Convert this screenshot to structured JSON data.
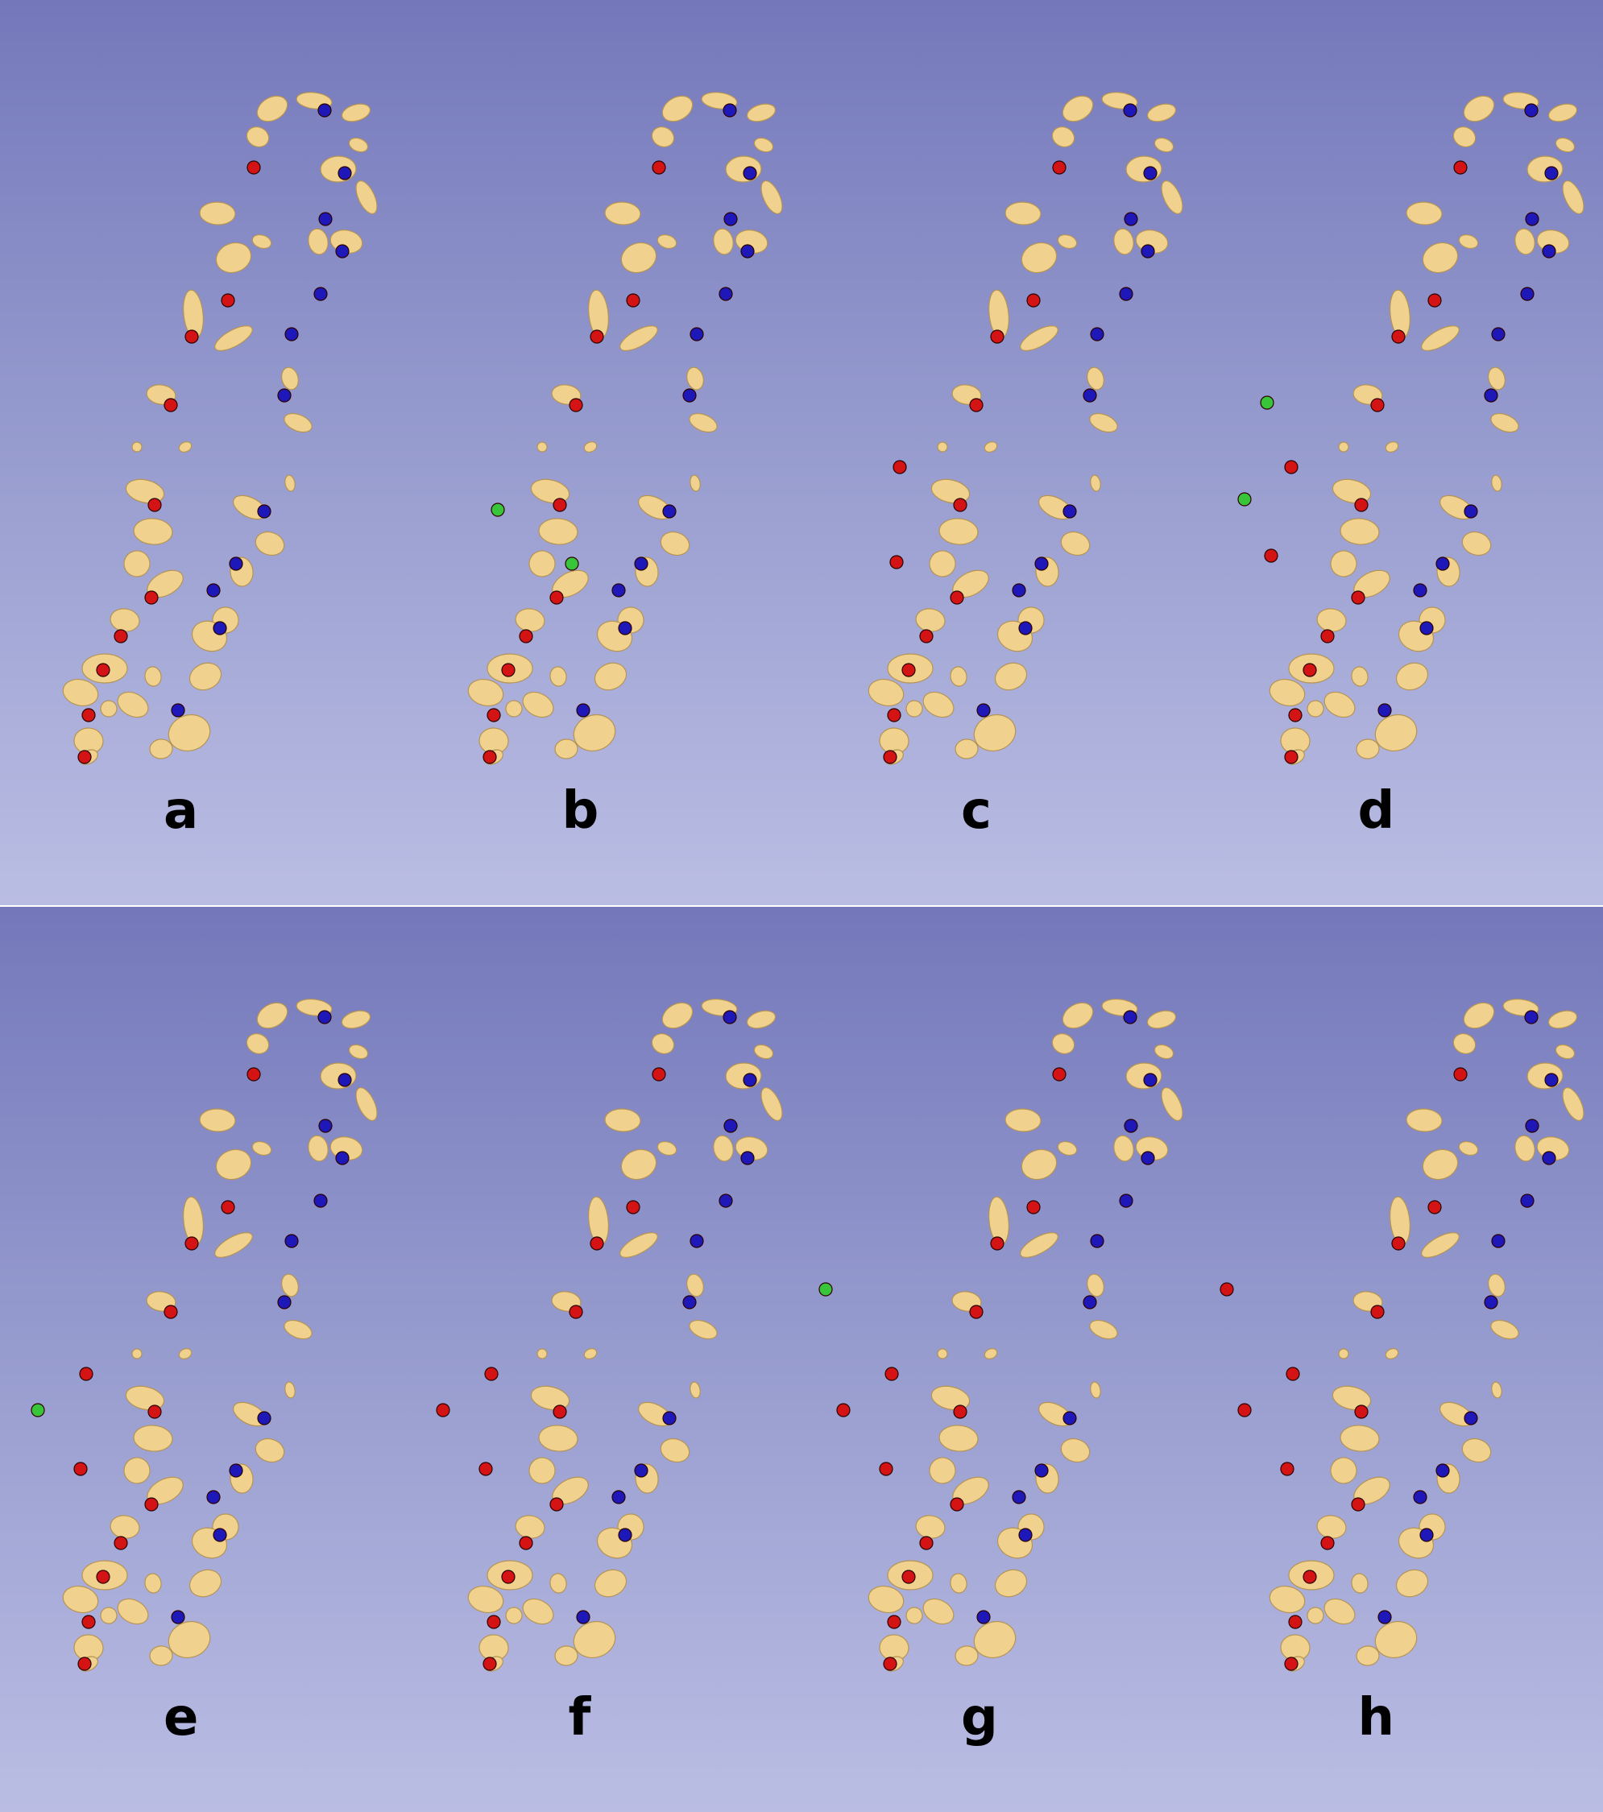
{
  "figure": {
    "marker_colors": {
      "red": "#d41414",
      "blue": "#1f18b8",
      "green": "#38c53a"
    },
    "bone_color": "#f0d28e",
    "rows": [
      {
        "panels": [
          {
            "label": "a",
            "green_marker_count": 0
          },
          {
            "label": "b",
            "green_marker_count": 2
          },
          {
            "label": "c",
            "green_marker_count": 0
          },
          {
            "label": "d",
            "green_marker_count": 2
          }
        ]
      },
      {
        "panels": [
          {
            "label": "e",
            "green_marker_count": 1
          },
          {
            "label": "f",
            "green_marker_count": 0
          },
          {
            "label": "g",
            "green_marker_count": 1
          },
          {
            "label": "h",
            "green_marker_count": 0
          }
        ]
      }
    ]
  }
}
